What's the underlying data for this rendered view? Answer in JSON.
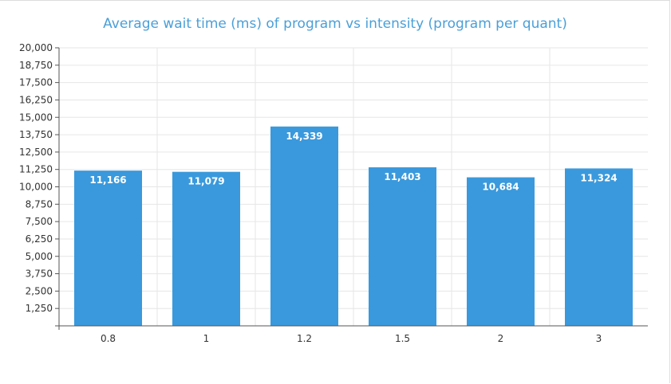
{
  "chart_data": {
    "type": "bar",
    "title": "Average wait time (ms) of program vs intensity (program per quant)",
    "xlabel": "",
    "ylabel": "",
    "categories": [
      "0.8",
      "1",
      "1.2",
      "1.5",
      "2",
      "3"
    ],
    "values": [
      11166,
      11079,
      14339,
      11403,
      10684,
      11324
    ],
    "data_labels": [
      "11,166",
      "11,079",
      "14,339",
      "11,403",
      "10,684",
      "11,324"
    ],
    "ylim": [
      0,
      20000
    ],
    "y_ticks": [
      "1,250",
      "2,500",
      "3,750",
      "5,000",
      "6,250",
      "7,500",
      "8,750",
      "10,000",
      "11,250",
      "12,500",
      "13,750",
      "15,000",
      "16,250",
      "17,500",
      "18,750",
      "20,000"
    ],
    "grid": true,
    "legend": "none",
    "bar_color": "#3a99dc",
    "grid_color": "#e6e6e6",
    "title_color": "#4a9fd8"
  }
}
